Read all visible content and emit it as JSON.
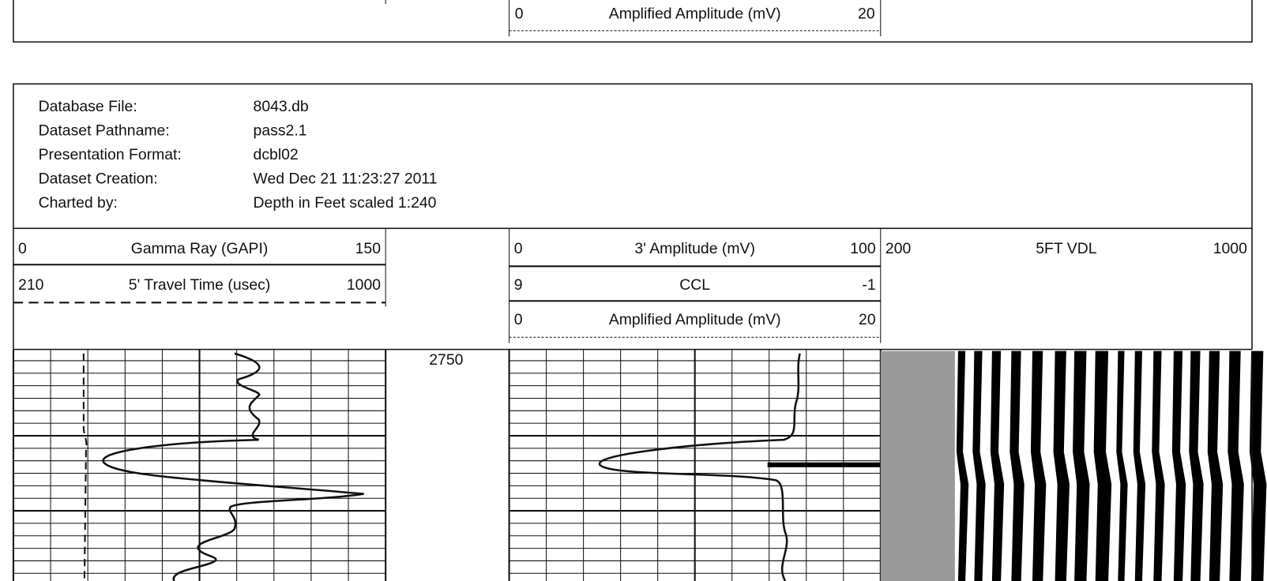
{
  "top_track": {
    "min": "0",
    "title": "Amplified Amplitude (mV)",
    "max": "20"
  },
  "header": {
    "rows": [
      {
        "label": "Database File:",
        "value": "8043.db"
      },
      {
        "label": "Dataset Pathname:",
        "value": "pass2.1"
      },
      {
        "label": "Presentation Format:",
        "value": "dcbl02"
      },
      {
        "label": "Dataset Creation:",
        "value": "Wed Dec 21 11:23:27 2011"
      },
      {
        "label": "Charted by:",
        "value": "Depth in Feet scaled 1:240"
      }
    ]
  },
  "tracks": [
    {
      "rows": [
        {
          "min": "0",
          "title": "Gamma Ray (GAPI)",
          "max": "150"
        },
        {
          "min": "210",
          "title": "5' Travel Time (usec)",
          "max": "1000"
        }
      ]
    },
    {
      "rows": [
        {
          "min": "0",
          "title": "3' Amplitude (mV)",
          "max": "100"
        },
        {
          "min": "9",
          "title": "CCL",
          "max": "-1"
        },
        {
          "min": "0",
          "title": "Amplified Amplitude (mV)",
          "max": "20"
        }
      ]
    },
    {
      "rows": [
        {
          "min": "200",
          "title": "5FT VDL",
          "max": "1000"
        }
      ]
    }
  ],
  "depth_label": "2750"
}
